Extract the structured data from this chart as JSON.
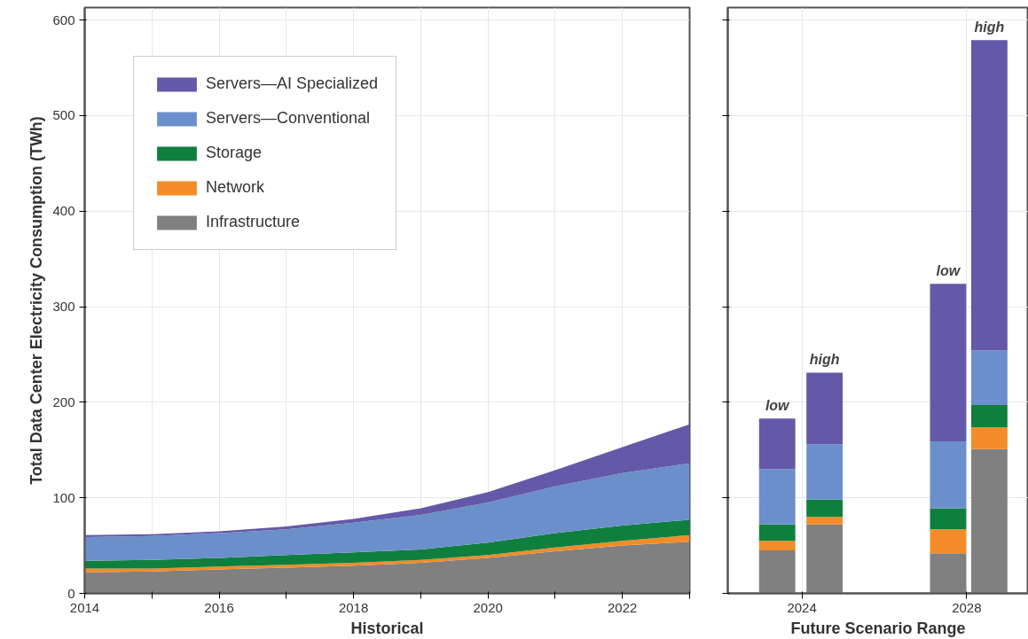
{
  "chart_data": [
    {
      "type": "area",
      "stacked": true,
      "xlabel": "Historical",
      "ylabel": "Total Data Center Electricity Consumption (TWh)",
      "x": [
        2014,
        2015,
        2016,
        2017,
        2018,
        2019,
        2020,
        2021,
        2022,
        2023
      ],
      "xlim": [
        2014,
        2023
      ],
      "xticks": [
        2014,
        {
          "value": 2015,
          "label": null
        },
        2016,
        {
          "value": 2017,
          "label": null
        },
        2018,
        {
          "value": 2019,
          "label": null
        },
        2020,
        {
          "value": 2021,
          "label": null
        },
        2022,
        {
          "value": 2023,
          "label": null
        }
      ],
      "ylim": [
        0,
        613
      ],
      "yticks": [
        0,
        100,
        200,
        300,
        400,
        500,
        600
      ],
      "grid": true,
      "legend": "top left",
      "series": [
        {
          "name": "Infrastructure",
          "color": "#808080",
          "values": [
            22,
            23,
            25,
            27,
            29,
            32,
            37,
            44,
            50,
            54
          ]
        },
        {
          "name": "Network",
          "color": "#f28c28",
          "values": [
            4,
            3,
            3,
            3,
            3,
            3,
            3,
            4,
            5,
            7
          ]
        },
        {
          "name": "Storage",
          "color": "#0f7f3e",
          "values": [
            8,
            9,
            9,
            10,
            11,
            11,
            13,
            15,
            16,
            16
          ]
        },
        {
          "name": "Servers—Conventional",
          "color": "#6b8fca",
          "values": [
            25,
            25,
            26,
            27,
            31,
            36,
            42,
            49,
            55,
            59
          ]
        },
        {
          "name": "Servers—AI Specialized",
          "color": "#6459a8",
          "values": [
            2,
            2,
            2,
            3,
            4,
            7,
            11,
            17,
            27,
            41
          ]
        }
      ]
    },
    {
      "type": "bar",
      "stacked": true,
      "xlabel": "Future Scenario Range",
      "x": [
        2023.4,
        2024.55,
        2027.55,
        2028.55
      ],
      "xlim": [
        2022.2,
        2029.5
      ],
      "xticks": [
        2024,
        2028
      ],
      "ylim": [
        0,
        613
      ],
      "yticks": [
        {
          "value": 0,
          "label": null
        },
        {
          "value": 100,
          "label": null
        },
        {
          "value": 200,
          "label": null
        },
        {
          "value": 300,
          "label": null
        },
        {
          "value": 400,
          "label": null
        },
        {
          "value": 500,
          "label": null
        },
        {
          "value": 600,
          "label": null
        }
      ],
      "tick_labels": "x",
      "grid": true,
      "series": [
        {
          "color": "#808080",
          "values": [
            45,
            72,
            42,
            151
          ]
        },
        {
          "color": "#f28c28",
          "values": [
            10,
            8,
            25,
            23
          ]
        },
        {
          "color": "#0f7f3e",
          "values": [
            17,
            18,
            22,
            23
          ]
        },
        {
          "color": "#6b8fca",
          "values": [
            58,
            58,
            70,
            57
          ]
        },
        {
          "color": "#6459a8",
          "values": [
            53,
            75,
            165,
            325
          ]
        }
      ],
      "annotations": [
        {
          "text": "low",
          "x": 2023.4,
          "y": 183
        },
        {
          "text": "high",
          "x": 2024.55,
          "y": 231
        },
        {
          "text": "low",
          "x": 2027.55,
          "y": 324
        },
        {
          "text": "high",
          "x": 2028.55,
          "y": 579
        }
      ]
    }
  ]
}
